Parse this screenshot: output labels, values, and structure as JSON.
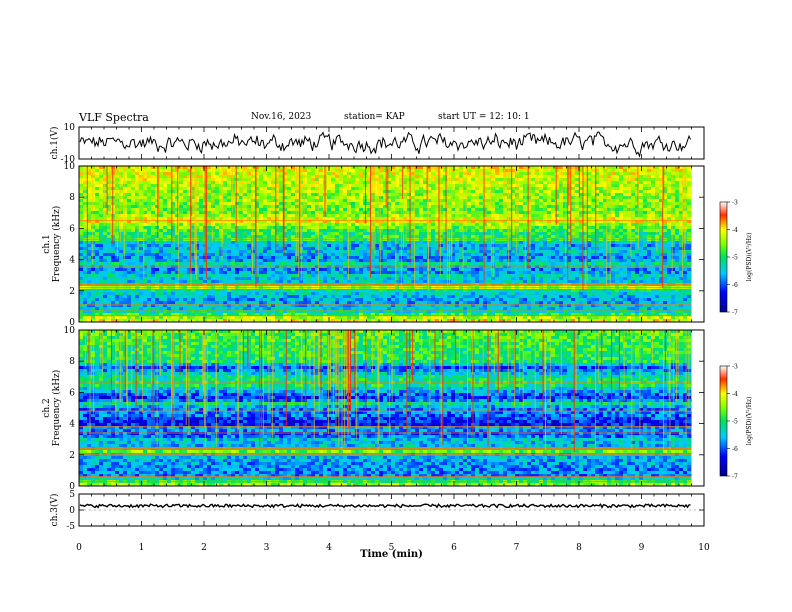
{
  "header": {
    "title": "VLF Spectra",
    "date": "Nov.16, 2023",
    "station": "station= KAP",
    "start_ut": "start  UT  =   12: 10: 1"
  },
  "chart_data": [
    {
      "type": "line",
      "panel": "ch1-waveform",
      "ylabel": "ch.1(V)",
      "ylim": [
        -10,
        10
      ],
      "yticks": [
        "10",
        "-10"
      ],
      "xlim": [
        0,
        10
      ],
      "series": [
        {
          "x_end_min": 9.8,
          "level_v": 0,
          "amplitude_v": 5
        }
      ]
    },
    {
      "type": "heatmap",
      "panel": "ch1-spectrogram",
      "ylabel": "ch.1\nFrequency (kHz)",
      "ylim": [
        0,
        10
      ],
      "yticks": [
        "0",
        "2",
        "4",
        "6",
        "8",
        "10"
      ],
      "xlim": [
        0,
        10
      ],
      "x_end_min": 9.8,
      "zlim": [
        -7,
        -3
      ],
      "colorbar_label": "log(PSD)(V²/Hz)",
      "colorbar_ticks": [
        "-3",
        "-4",
        "-5",
        "-6",
        "-7"
      ],
      "profile_khz_log_psd": [
        [
          0,
          -4.0
        ],
        [
          0.3,
          -4.4
        ],
        [
          0.6,
          -5.2
        ],
        [
          1.0,
          -5.6
        ],
        [
          1.5,
          -5.7
        ],
        [
          2.0,
          -5.3
        ],
        [
          2.2,
          -4.3
        ],
        [
          2.5,
          -5.5
        ],
        [
          3.0,
          -5.4
        ],
        [
          3.3,
          -5.9
        ],
        [
          3.7,
          -5.2
        ],
        [
          4.0,
          -5.8
        ],
        [
          4.5,
          -5.5
        ],
        [
          5.0,
          -5.7
        ],
        [
          5.3,
          -4.8
        ],
        [
          5.6,
          -5.0
        ],
        [
          6.0,
          -4.7
        ],
        [
          6.5,
          -4.1
        ],
        [
          7.0,
          -4.6
        ],
        [
          8.0,
          -4.5
        ],
        [
          9.0,
          -4.3
        ],
        [
          10.0,
          -4.1
        ]
      ],
      "lines_khz": [
        0.4,
        0.7,
        1.1,
        2.2,
        2.4,
        3.6,
        5.3,
        6.5
      ]
    },
    {
      "type": "heatmap",
      "panel": "ch2-spectrogram",
      "ylabel": "ch.2\nFrequency (kHz)",
      "ylim": [
        0,
        10
      ],
      "yticks": [
        "0",
        "2",
        "4",
        "6",
        "8",
        "10"
      ],
      "xlim": [
        0,
        10
      ],
      "x_end_min": 9.8,
      "zlim": [
        -7,
        -3
      ],
      "colorbar_label": "log(PSD)(V²/Hz)",
      "colorbar_ticks": [
        "-3",
        "-4",
        "-5",
        "-6",
        "-7"
      ],
      "profile_khz_log_psd": [
        [
          0,
          -4.3
        ],
        [
          0.3,
          -4.8
        ],
        [
          0.6,
          -5.8
        ],
        [
          1.0,
          -5.8
        ],
        [
          1.5,
          -5.7
        ],
        [
          2.0,
          -5.5
        ],
        [
          2.2,
          -4.6
        ],
        [
          2.5,
          -5.6
        ],
        [
          3.0,
          -5.5
        ],
        [
          3.3,
          -6.1
        ],
        [
          3.7,
          -5.6
        ],
        [
          4.0,
          -6.4
        ],
        [
          4.5,
          -5.9
        ],
        [
          5.0,
          -5.8
        ],
        [
          5.3,
          -5.2
        ],
        [
          5.6,
          -6.2
        ],
        [
          6.0,
          -5.8
        ],
        [
          6.5,
          -5.0
        ],
        [
          7.0,
          -5.2
        ],
        [
          7.6,
          -6.0
        ],
        [
          8.0,
          -5.0
        ],
        [
          9.0,
          -4.9
        ],
        [
          10.0,
          -4.7
        ]
      ],
      "lines_khz": [
        0.3,
        0.6,
        2.0,
        2.4,
        3.4,
        3.8,
        4.8,
        5.3,
        6.6
      ]
    },
    {
      "type": "line",
      "panel": "ch3-waveform",
      "ylabel": "ch.3(V)",
      "ylim": [
        -5,
        5
      ],
      "yticks": [
        "5",
        "0",
        "-5"
      ],
      "xlabel": "Time  (min)",
      "xlim": [
        0,
        10
      ],
      "xticks": [
        "0",
        "1",
        "2",
        "3",
        "4",
        "5",
        "6",
        "7",
        "8",
        "9",
        "10"
      ],
      "series": [
        {
          "x_end_min": 9.8,
          "level_v": 1.3,
          "amplitude_v": 0.5
        }
      ]
    }
  ]
}
